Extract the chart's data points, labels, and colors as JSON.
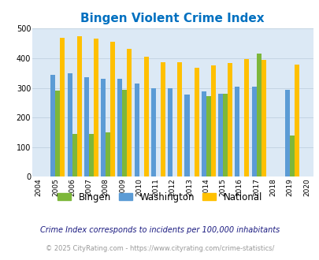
{
  "title": "Bingen Violent Crime Index",
  "years": [
    2004,
    2005,
    2006,
    2007,
    2008,
    2009,
    2010,
    2011,
    2012,
    2013,
    2014,
    2015,
    2016,
    2017,
    2018,
    2019,
    2020
  ],
  "bingen": [
    null,
    292,
    145,
    145,
    150,
    293,
    null,
    null,
    null,
    null,
    272,
    280,
    null,
    415,
    null,
    138,
    null
  ],
  "washington": [
    null,
    345,
    348,
    335,
    330,
    332,
    314,
    298,
    298,
    277,
    288,
    281,
    303,
    305,
    null,
    293,
    null
  ],
  "national": [
    null,
    469,
    473,
    467,
    455,
    432,
    405,
    387,
    387,
    368,
    377,
    384,
    398,
    394,
    null,
    379,
    null
  ],
  "bar_colors": {
    "bingen": "#7db73a",
    "washington": "#5b9bd5",
    "national": "#ffc000"
  },
  "bar_order": [
    "washington",
    "bingen",
    "national"
  ],
  "ylim": [
    0,
    500
  ],
  "yticks": [
    0,
    100,
    200,
    300,
    400,
    500
  ],
  "bg_color": "#dce9f5",
  "title_color": "#0070c0",
  "title_fontsize": 11,
  "legend_labels": [
    "Bingen",
    "Washington",
    "National"
  ],
  "footnote1": "Crime Index corresponds to incidents per 100,000 inhabitants",
  "footnote2": "© 2025 CityRating.com - https://www.cityrating.com/crime-statistics/",
  "footnote1_color": "#1a1a80",
  "footnote2_color": "#999999",
  "grid_color": "#c0d0e0"
}
